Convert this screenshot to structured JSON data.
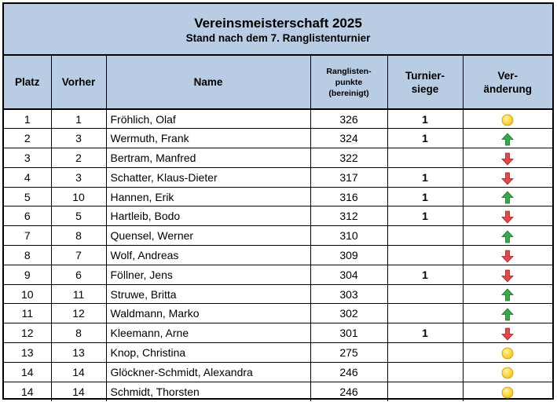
{
  "title": "Vereinsmeisterschaft 2025",
  "subtitle": "Stand nach dem 7. Ranglistenturnier",
  "columns": {
    "platz": "Platz",
    "vorher": "Vorher",
    "name": "Name",
    "punkte_1": "Ranglisten-",
    "punkte_2": "punkte",
    "punkte_3": "(bereinigt)",
    "siege_1": "Turnier-",
    "siege_2": "siege",
    "change_1": "Ver-",
    "change_2": "änderung"
  },
  "colors": {
    "header_bg": "#b8cce4",
    "up": "#3aa84a",
    "down": "#e04a4a",
    "same": "#f5c518"
  },
  "rows": [
    {
      "platz": "1",
      "vorher": "1",
      "name": "Fröhlich, Olaf",
      "punkte": "326",
      "siege": "1",
      "change": "same"
    },
    {
      "platz": "2",
      "vorher": "3",
      "name": "Wermuth, Frank",
      "punkte": "324",
      "siege": "1",
      "change": "up"
    },
    {
      "platz": "3",
      "vorher": "2",
      "name": "Bertram, Manfred",
      "punkte": "322",
      "siege": "",
      "change": "down"
    },
    {
      "platz": "4",
      "vorher": "3",
      "name": "Schatter, Klaus-Dieter",
      "punkte": "317",
      "siege": "1",
      "change": "down"
    },
    {
      "platz": "5",
      "vorher": "10",
      "name": "Hannen, Erik",
      "punkte": "316",
      "siege": "1",
      "change": "up"
    },
    {
      "platz": "6",
      "vorher": "5",
      "name": "Hartleib, Bodo",
      "punkte": "312",
      "siege": "1",
      "change": "down"
    },
    {
      "platz": "7",
      "vorher": "8",
      "name": "Quensel, Werner",
      "punkte": "310",
      "siege": "",
      "change": "up"
    },
    {
      "platz": "8",
      "vorher": "7",
      "name": "Wolf, Andreas",
      "punkte": "309",
      "siege": "",
      "change": "down"
    },
    {
      "platz": "9",
      "vorher": "6",
      "name": "Föllner, Jens",
      "punkte": "304",
      "siege": "1",
      "change": "down"
    },
    {
      "platz": "10",
      "vorher": "11",
      "name": "Struwe, Britta",
      "punkte": "303",
      "siege": "",
      "change": "up"
    },
    {
      "platz": "11",
      "vorher": "12",
      "name": "Waldmann, Marko",
      "punkte": "302",
      "siege": "",
      "change": "up"
    },
    {
      "platz": "12",
      "vorher": "8",
      "name": "Kleemann, Arne",
      "punkte": "301",
      "siege": "1",
      "change": "down"
    },
    {
      "platz": "13",
      "vorher": "13",
      "name": "Knop, Christina",
      "punkte": "275",
      "siege": "",
      "change": "same"
    },
    {
      "platz": "14",
      "vorher": "14",
      "name": "Glöckner-Schmidt, Alexandra",
      "punkte": "246",
      "siege": "",
      "change": "same"
    },
    {
      "platz": "14",
      "vorher": "14",
      "name": "Schmidt, Thorsten",
      "punkte": "246",
      "siege": "",
      "change": "same"
    }
  ]
}
